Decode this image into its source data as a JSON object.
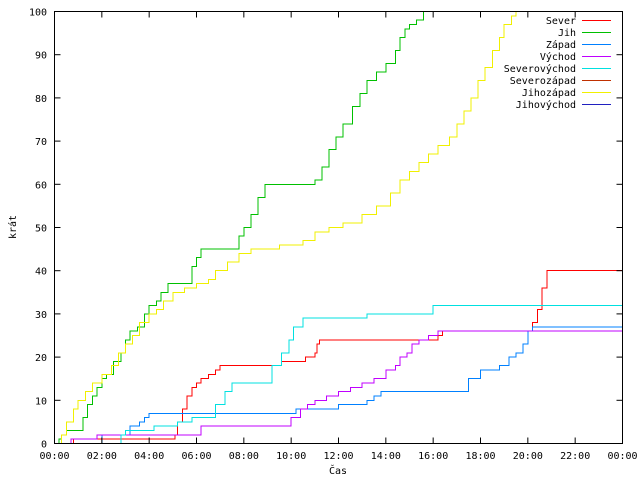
{
  "chart_data": {
    "type": "line",
    "title": "",
    "xlabel": "Čas",
    "ylabel": "krát",
    "xlim": [
      0,
      24
    ],
    "ylim": [
      0,
      100
    ],
    "grid": false,
    "legend_position": "top-right",
    "x_ticks": [
      {
        "value": 0,
        "label": "00:00"
      },
      {
        "value": 2,
        "label": "02:00"
      },
      {
        "value": 4,
        "label": "04:00"
      },
      {
        "value": 6,
        "label": "06:00"
      },
      {
        "value": 8,
        "label": "08:00"
      },
      {
        "value": 10,
        "label": "10:00"
      },
      {
        "value": 12,
        "label": "12:00"
      },
      {
        "value": 14,
        "label": "14:00"
      },
      {
        "value": 16,
        "label": "16:00"
      },
      {
        "value": 18,
        "label": "18:00"
      },
      {
        "value": 20,
        "label": "20:00"
      },
      {
        "value": 22,
        "label": "22:00"
      },
      {
        "value": 24,
        "label": "00:00"
      }
    ],
    "y_ticks": [
      {
        "value": 0,
        "label": "0"
      },
      {
        "value": 10,
        "label": "10"
      },
      {
        "value": 20,
        "label": "20"
      },
      {
        "value": 30,
        "label": "30"
      },
      {
        "value": 40,
        "label": "40"
      },
      {
        "value": 50,
        "label": "50"
      },
      {
        "value": 60,
        "label": "60"
      },
      {
        "value": 70,
        "label": "70"
      },
      {
        "value": 80,
        "label": "80"
      },
      {
        "value": 90,
        "label": "90"
      },
      {
        "value": 100,
        "label": "100"
      }
    ],
    "series": [
      {
        "name": "Sever",
        "color": "#ff0000",
        "points": [
          [
            0,
            0
          ],
          [
            0.5,
            0
          ],
          [
            0.8,
            1
          ],
          [
            5.0,
            1
          ],
          [
            5.1,
            2
          ],
          [
            5.2,
            5
          ],
          [
            5.4,
            8
          ],
          [
            5.6,
            11
          ],
          [
            5.8,
            13
          ],
          [
            6.0,
            14
          ],
          [
            6.2,
            15
          ],
          [
            6.5,
            16
          ],
          [
            6.8,
            17
          ],
          [
            7.0,
            18
          ],
          [
            9.5,
            18
          ],
          [
            9.6,
            19
          ],
          [
            10.4,
            19
          ],
          [
            10.6,
            20
          ],
          [
            11.0,
            21
          ],
          [
            11.1,
            23
          ],
          [
            11.2,
            24
          ],
          [
            16.0,
            24
          ],
          [
            16.2,
            25
          ],
          [
            16.4,
            26
          ],
          [
            20.0,
            26
          ],
          [
            20.2,
            28
          ],
          [
            20.4,
            31
          ],
          [
            20.6,
            36
          ],
          [
            20.8,
            40
          ],
          [
            24.0,
            40
          ]
        ]
      },
      {
        "name": "Jih",
        "color": "#00c000",
        "points": [
          [
            0,
            0
          ],
          [
            0.2,
            1
          ],
          [
            0.3,
            2
          ],
          [
            0.5,
            3
          ],
          [
            1.0,
            3
          ],
          [
            1.2,
            6
          ],
          [
            1.4,
            9
          ],
          [
            1.6,
            11
          ],
          [
            1.8,
            13
          ],
          [
            2.0,
            15
          ],
          [
            2.2,
            16
          ],
          [
            2.5,
            19
          ],
          [
            2.8,
            21
          ],
          [
            3.0,
            24
          ],
          [
            3.2,
            26
          ],
          [
            3.5,
            27
          ],
          [
            3.8,
            30
          ],
          [
            4.0,
            32
          ],
          [
            4.3,
            33
          ],
          [
            4.5,
            35
          ],
          [
            4.8,
            37
          ],
          [
            5.5,
            37
          ],
          [
            5.8,
            41
          ],
          [
            6.0,
            43
          ],
          [
            6.2,
            45
          ],
          [
            7.5,
            45
          ],
          [
            7.8,
            48
          ],
          [
            8.0,
            50
          ],
          [
            8.3,
            53
          ],
          [
            8.6,
            57
          ],
          [
            8.9,
            60
          ],
          [
            10.8,
            60
          ],
          [
            11.0,
            61
          ],
          [
            11.3,
            64
          ],
          [
            11.6,
            68
          ],
          [
            11.9,
            71
          ],
          [
            12.2,
            74
          ],
          [
            12.6,
            78
          ],
          [
            12.9,
            81
          ],
          [
            13.2,
            84
          ],
          [
            13.6,
            86
          ],
          [
            14.0,
            88
          ],
          [
            14.4,
            91
          ],
          [
            14.6,
            94
          ],
          [
            14.8,
            96
          ],
          [
            15.0,
            97
          ],
          [
            15.3,
            98
          ],
          [
            15.6,
            100
          ],
          [
            24.0,
            100
          ]
        ]
      },
      {
        "name": "Západ",
        "color": "#0080ff",
        "points": [
          [
            0,
            0
          ],
          [
            1.8,
            0
          ],
          [
            2.0,
            2
          ],
          [
            3.0,
            2
          ],
          [
            3.2,
            4
          ],
          [
            3.6,
            5
          ],
          [
            3.8,
            6
          ],
          [
            4.0,
            7
          ],
          [
            10.0,
            7
          ],
          [
            10.2,
            8
          ],
          [
            11.8,
            8
          ],
          [
            12.0,
            9
          ],
          [
            13.0,
            9
          ],
          [
            13.2,
            10
          ],
          [
            13.5,
            11
          ],
          [
            13.8,
            12
          ],
          [
            17.2,
            12
          ],
          [
            17.5,
            15
          ],
          [
            18.0,
            17
          ],
          [
            18.8,
            18
          ],
          [
            19.2,
            20
          ],
          [
            19.5,
            21
          ],
          [
            19.8,
            23
          ],
          [
            20.0,
            26
          ],
          [
            20.2,
            27
          ],
          [
            24.0,
            27
          ]
        ]
      },
      {
        "name": "Východ",
        "color": "#c000ff",
        "points": [
          [
            0,
            0
          ],
          [
            0.5,
            0
          ],
          [
            0.7,
            1
          ],
          [
            1.6,
            1
          ],
          [
            1.8,
            2
          ],
          [
            6.0,
            2
          ],
          [
            6.2,
            4
          ],
          [
            9.8,
            4
          ],
          [
            10.0,
            6
          ],
          [
            10.4,
            8
          ],
          [
            10.7,
            9
          ],
          [
            11.0,
            10
          ],
          [
            11.5,
            11
          ],
          [
            12.0,
            12
          ],
          [
            12.5,
            13
          ],
          [
            13.0,
            14
          ],
          [
            13.5,
            15
          ],
          [
            14.0,
            17
          ],
          [
            14.4,
            18
          ],
          [
            14.6,
            20
          ],
          [
            14.9,
            21
          ],
          [
            15.1,
            23
          ],
          [
            15.4,
            24
          ],
          [
            15.8,
            25
          ],
          [
            16.2,
            26
          ],
          [
            23.8,
            26
          ],
          [
            24.0,
            30
          ]
        ]
      },
      {
        "name": "Severovýchod",
        "color": "#00e0e0",
        "points": [
          [
            0,
            0
          ],
          [
            2.6,
            0
          ],
          [
            2.8,
            2
          ],
          [
            3.0,
            3
          ],
          [
            4.0,
            3
          ],
          [
            4.2,
            4
          ],
          [
            5.0,
            4
          ],
          [
            5.2,
            5
          ],
          [
            5.8,
            6
          ],
          [
            6.6,
            6
          ],
          [
            6.8,
            9
          ],
          [
            7.2,
            12
          ],
          [
            7.5,
            14
          ],
          [
            9.0,
            14
          ],
          [
            9.2,
            18
          ],
          [
            9.6,
            21
          ],
          [
            9.9,
            24
          ],
          [
            10.1,
            27
          ],
          [
            10.5,
            29
          ],
          [
            13.0,
            29
          ],
          [
            13.2,
            30
          ],
          [
            15.8,
            30
          ],
          [
            16.0,
            32
          ],
          [
            24.0,
            32
          ]
        ]
      },
      {
        "name": "Severozápad",
        "color": "#c03000",
        "points": [
          [
            0,
            0
          ],
          [
            24.0,
            0
          ]
        ]
      },
      {
        "name": "Jihozápad",
        "color": "#f0f000",
        "points": [
          [
            0,
            0
          ],
          [
            0.3,
            2
          ],
          [
            0.5,
            5
          ],
          [
            0.8,
            8
          ],
          [
            1.0,
            10
          ],
          [
            1.3,
            12
          ],
          [
            1.6,
            14
          ],
          [
            2.0,
            16
          ],
          [
            2.4,
            18
          ],
          [
            2.7,
            21
          ],
          [
            3.0,
            23
          ],
          [
            3.3,
            25
          ],
          [
            3.6,
            28
          ],
          [
            4.0,
            30
          ],
          [
            4.3,
            31
          ],
          [
            4.6,
            33
          ],
          [
            5.0,
            35
          ],
          [
            5.5,
            36
          ],
          [
            6.0,
            37
          ],
          [
            6.5,
            38
          ],
          [
            6.8,
            40
          ],
          [
            7.3,
            42
          ],
          [
            7.8,
            44
          ],
          [
            8.3,
            45
          ],
          [
            9.5,
            46
          ],
          [
            10.5,
            47
          ],
          [
            11.0,
            49
          ],
          [
            11.6,
            50
          ],
          [
            12.2,
            51
          ],
          [
            13.0,
            53
          ],
          [
            13.6,
            55
          ],
          [
            14.2,
            58
          ],
          [
            14.6,
            61
          ],
          [
            15.0,
            63
          ],
          [
            15.4,
            65
          ],
          [
            15.8,
            67
          ],
          [
            16.2,
            69
          ],
          [
            16.7,
            71
          ],
          [
            17.0,
            74
          ],
          [
            17.3,
            77
          ],
          [
            17.6,
            80
          ],
          [
            17.9,
            84
          ],
          [
            18.2,
            87
          ],
          [
            18.5,
            91
          ],
          [
            18.8,
            94
          ],
          [
            19.0,
            97
          ],
          [
            19.3,
            99
          ],
          [
            19.5,
            100
          ],
          [
            24.0,
            100
          ]
        ]
      },
      {
        "name": "Jihovýchod",
        "color": "#2020c0",
        "points": [
          [
            0,
            0
          ],
          [
            24.0,
            0
          ]
        ]
      }
    ]
  }
}
